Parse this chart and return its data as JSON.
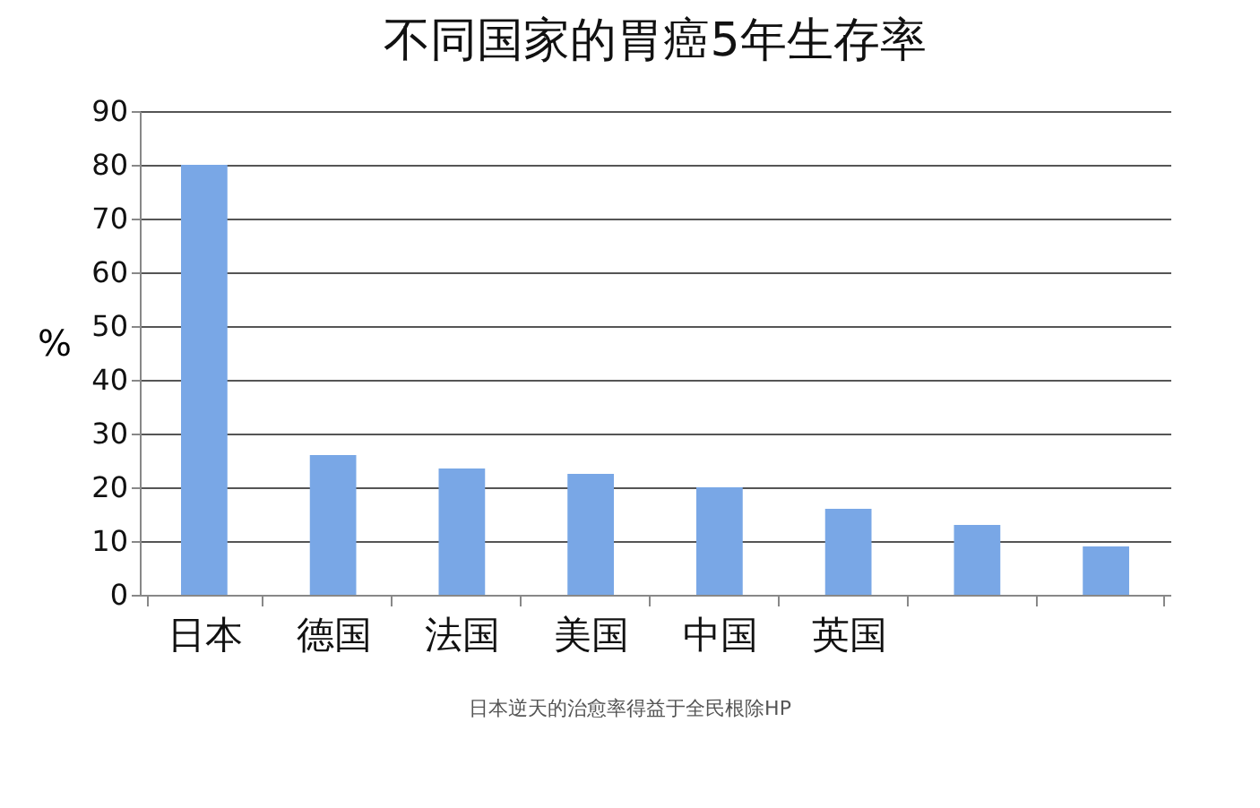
{
  "chart_data": {
    "type": "bar",
    "title": "不同国家的胃癌5年生存率",
    "ylabel": "%",
    "categories": [
      "日本",
      "德国",
      "法国",
      "美国",
      "中国",
      "英国",
      null,
      null
    ],
    "values": [
      80,
      26,
      23.5,
      22.5,
      20,
      16,
      13,
      9
    ],
    "color": "#79a7e6",
    "ylim": [
      0,
      90
    ],
    "yticks": [
      0,
      10,
      20,
      30,
      40,
      50,
      60,
      70,
      80,
      90
    ],
    "grid": "y",
    "annotations": [
      "日本逆天的治愈率得益于全民根除HP"
    ]
  }
}
